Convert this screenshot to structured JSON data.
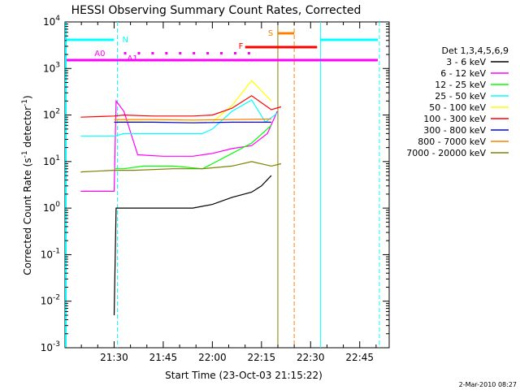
{
  "chart_data": {
    "type": "line",
    "title": "HESSI Observing Summary Count Rates, Corrected",
    "xlabel": "Start Time (23-Oct-03 21:15:22)",
    "ylabel": "Corrected Count Rate (s",
    "ylabel_sup": "-1",
    "ylabel_mid": " detector",
    "ylabel_end": ")",
    "x_range": [
      "21:15:22",
      "22:54:00"
    ],
    "x_ticks": [
      "21:30",
      "21:45",
      "22:00",
      "22:15",
      "22:30",
      "22:45"
    ],
    "y_scale": "log",
    "y_range": [
      0.001,
      10000
    ],
    "y_ticks": [
      {
        "base": "10",
        "exp": "-3"
      },
      {
        "base": "10",
        "exp": "-2"
      },
      {
        "base": "10",
        "exp": "-1"
      },
      {
        "base": "10",
        "exp": "0"
      },
      {
        "base": "10",
        "exp": "1"
      },
      {
        "base": "10",
        "exp": "2"
      },
      {
        "base": "10",
        "exp": "3"
      },
      {
        "base": "10",
        "exp": "4"
      }
    ],
    "legend_title": "Det 1,3,4,5,6,9",
    "legend_placement": "right",
    "series": [
      {
        "name": "3 - 6 keV",
        "color": "#000000",
        "x": [
          21.33,
          21.5,
          21.51,
          21.52,
          21.6,
          21.75,
          21.9,
          22.0,
          22.1,
          22.2,
          22.25,
          22.3,
          22.35,
          22.4
        ],
        "y": [
          null,
          0.005,
          1.0,
          1.0,
          1.0,
          1.0,
          1.0,
          1.2,
          1.7,
          2.2,
          3.0,
          5.0,
          null,
          null
        ]
      },
      {
        "name": "6 - 12 keV",
        "color": "#ff00ff",
        "x": [
          21.33,
          21.5,
          21.51,
          21.55,
          21.62,
          21.75,
          21.9,
          22.0,
          22.1,
          22.2,
          22.28,
          22.33,
          22.38
        ],
        "y": [
          2.3,
          2.3,
          200,
          120,
          14,
          13,
          13,
          15,
          19,
          22,
          40,
          120,
          null
        ]
      },
      {
        "name": "12 - 25 keV",
        "color": "#00ff00",
        "x": [
          21.33,
          21.5,
          21.55,
          21.65,
          21.8,
          21.95,
          22.0,
          22.1,
          22.2,
          22.3,
          22.4
        ],
        "y": [
          null,
          7,
          7,
          8,
          8,
          7,
          9,
          15,
          25,
          60,
          null
        ]
      },
      {
        "name": "25 - 50 keV",
        "color": "#00ffff",
        "x": [
          21.33,
          21.5,
          21.55,
          21.65,
          21.8,
          21.95,
          22.0,
          22.1,
          22.2,
          22.27,
          22.33,
          22.4
        ],
        "y": [
          35,
          35,
          40,
          40,
          40,
          40,
          50,
          120,
          210,
          70,
          110,
          null
        ]
      },
      {
        "name": "50 - 100 keV",
        "color": "#ffff00",
        "x": [
          21.33,
          21.5,
          21.6,
          21.8,
          22.0,
          22.1,
          22.2,
          22.3,
          22.4
        ],
        "y": [
          null,
          72,
          72,
          70,
          70,
          160,
          550,
          200,
          null
        ]
      },
      {
        "name": "100 - 300 keV",
        "color": "#ff0000",
        "x": [
          21.33,
          21.5,
          21.55,
          21.7,
          21.9,
          22.0,
          22.1,
          22.2,
          22.3,
          22.35,
          22.4
        ],
        "y": [
          90,
          95,
          100,
          95,
          95,
          100,
          140,
          260,
          130,
          150,
          null
        ]
      },
      {
        "name": "300 - 800 keV",
        "color": "#0000ff",
        "x": [
          21.33,
          21.5,
          21.7,
          21.9,
          22.1,
          22.3,
          22.4
        ],
        "y": [
          null,
          70,
          70,
          68,
          70,
          70,
          null
        ]
      },
      {
        "name": "800 - 7000 keV",
        "color": "#ff8000",
        "x": [
          21.33,
          21.5,
          21.7,
          21.9,
          22.1,
          22.3,
          22.4
        ],
        "y": [
          null,
          80,
          80,
          78,
          80,
          82,
          null
        ]
      },
      {
        "name": "7000 - 20000 keV",
        "color": "#808000",
        "x": [
          21.33,
          21.5,
          21.6,
          21.8,
          21.95,
          22.1,
          22.2,
          22.3,
          22.35,
          22.4
        ],
        "y": [
          6,
          6.5,
          6.5,
          7,
          7,
          8,
          10,
          8,
          9,
          null
        ]
      }
    ],
    "attenuator_labels": [
      {
        "text": "N",
        "color": "#00ffff"
      },
      {
        "text": "A0",
        "color": "#ff00ff"
      },
      {
        "text": "A1",
        "color": "#ff00ff"
      },
      {
        "text": "F",
        "color": "#ff0000"
      },
      {
        "text": "S",
        "color": "#ff8000"
      }
    ],
    "footer_date": "2-Mar-2010 08:27"
  }
}
